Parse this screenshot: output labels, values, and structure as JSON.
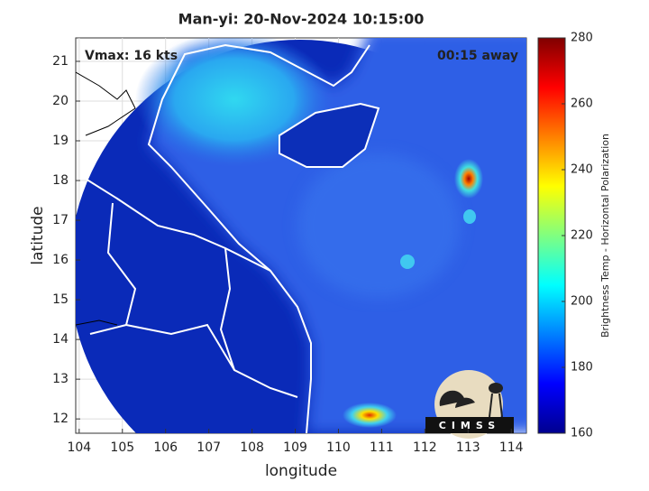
{
  "chart_data": {
    "type": "map",
    "title": "Man-yi: 20-Nov-2024 10:15:00",
    "annotations": [
      "Vmax: 16 kts",
      "00:15 away"
    ],
    "x_label": "longitude",
    "y_label": "latitude",
    "xlim": [
      103.92,
      114.35
    ],
    "xticks": [
      104,
      105,
      106,
      107,
      108,
      109,
      110,
      111,
      112,
      113,
      114
    ],
    "ylim": [
      11.64,
      21.59
    ],
    "yticks": [
      12,
      13,
      14,
      15,
      16,
      17,
      18,
      19,
      20,
      21
    ],
    "grid": true,
    "colorbar": {
      "label": "Brightness Temp - Horizontal Polarization",
      "colormap": "jet",
      "lim": [
        160,
        280
      ],
      "ticks": [
        160,
        180,
        200,
        220,
        240,
        260,
        280
      ]
    },
    "logo": "CIMSS"
  }
}
